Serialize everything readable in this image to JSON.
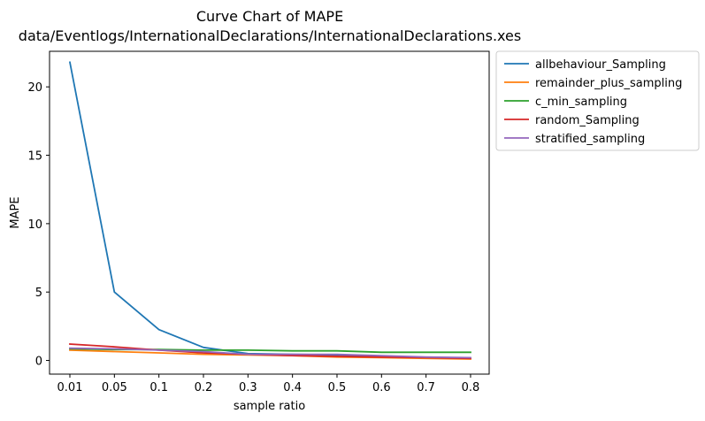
{
  "chart_data": {
    "type": "line",
    "title": "Curve Chart of MAPE",
    "subtitle": "data/Eventlogs/InternationalDeclarations/InternationalDeclarations.xes",
    "xlabel": "sample ratio",
    "ylabel": "MAPE",
    "categories": [
      "0.01",
      "0.05",
      "0.1",
      "0.2",
      "0.3",
      "0.4",
      "0.5",
      "0.6",
      "0.7",
      "0.8"
    ],
    "yticks": [
      "0",
      "5",
      "10",
      "15",
      "20"
    ],
    "ylim": [
      -1.0,
      22.6
    ],
    "grid": false,
    "legend_position": "outside-right",
    "series": [
      {
        "name": "allbehaviour_Sampling",
        "color": "#1f77b4",
        "values": [
          21.8,
          5.0,
          2.25,
          0.95,
          0.5,
          0.45,
          0.4,
          0.3,
          0.2,
          0.15
        ]
      },
      {
        "name": "remainder_plus_sampling",
        "color": "#ff7f0e",
        "values": [
          0.75,
          0.65,
          0.55,
          0.45,
          0.4,
          0.35,
          0.25,
          0.2,
          0.15,
          0.1
        ]
      },
      {
        "name": "c_min_sampling",
        "color": "#2ca02c",
        "values": [
          0.85,
          0.8,
          0.8,
          0.75,
          0.75,
          0.7,
          0.7,
          0.6,
          0.6,
          0.6
        ]
      },
      {
        "name": "random_Sampling",
        "color": "#d62728",
        "values": [
          1.2,
          1.0,
          0.75,
          0.55,
          0.45,
          0.35,
          0.3,
          0.25,
          0.2,
          0.15
        ]
      },
      {
        "name": "stratified_sampling",
        "color": "#9467bd",
        "values": [
          0.9,
          0.85,
          0.75,
          0.65,
          0.45,
          0.45,
          0.45,
          0.35,
          0.25,
          0.2
        ]
      }
    ]
  }
}
